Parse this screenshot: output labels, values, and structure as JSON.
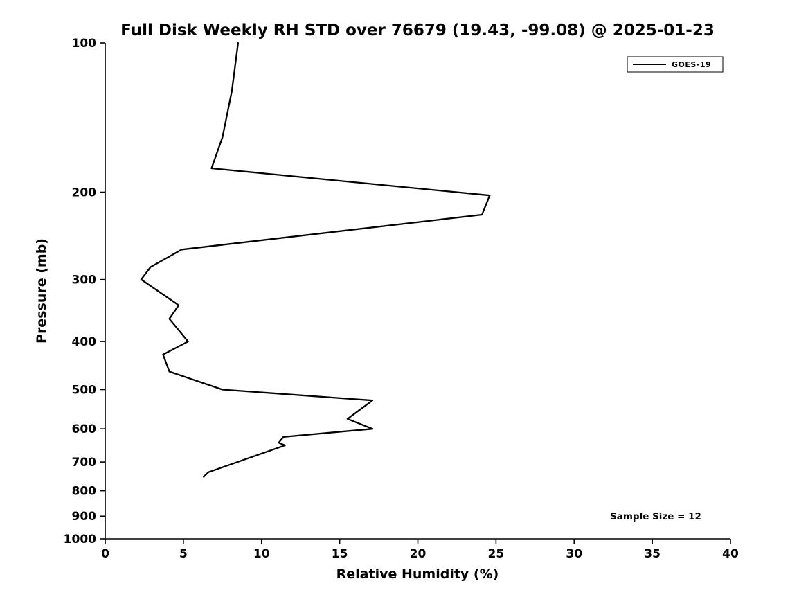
{
  "chart_data": {
    "type": "line",
    "title": "Full Disk Weekly RH STD over 76679 (19.43, -99.08) @ 2025-01-23",
    "xlabel": "Relative Humidity (%)",
    "ylabel": "Pressure (mb)",
    "xlim": [
      0,
      40
    ],
    "x_ticks": [
      0,
      5,
      10,
      15,
      20,
      25,
      30,
      35,
      40
    ],
    "ylim": [
      100,
      1000
    ],
    "y_scale": "log",
    "y_inverted": true,
    "y_ticks": [
      100,
      200,
      300,
      400,
      500,
      600,
      700,
      800,
      900,
      1000
    ],
    "grid": false,
    "line_color": "#000000",
    "legend": {
      "position": "top-right",
      "entries": [
        {
          "label": "GOES-19",
          "color": "#000000",
          "style": "solid"
        }
      ]
    },
    "annotation": "Sample Size = 12",
    "series": [
      {
        "name": "GOES-19",
        "color": "#000000",
        "points_format": "[relative_humidity_pct, pressure_mb]",
        "points": [
          [
            8.5,
            100
          ],
          [
            8.1,
            125
          ],
          [
            7.5,
            155
          ],
          [
            6.8,
            179
          ],
          [
            24.6,
            203
          ],
          [
            24.1,
            222
          ],
          [
            4.9,
            261
          ],
          [
            2.9,
            283
          ],
          [
            2.3,
            300
          ],
          [
            4.7,
            338
          ],
          [
            4.1,
            360
          ],
          [
            5.3,
            400
          ],
          [
            3.7,
            425
          ],
          [
            4.1,
            460
          ],
          [
            7.5,
            500
          ],
          [
            17.1,
            526
          ],
          [
            15.5,
            573
          ],
          [
            17.1,
            600
          ],
          [
            11.4,
            623
          ],
          [
            11.1,
            640
          ],
          [
            11.5,
            648
          ],
          [
            6.6,
            734
          ],
          [
            6.3,
            750
          ]
        ]
      }
    ]
  }
}
